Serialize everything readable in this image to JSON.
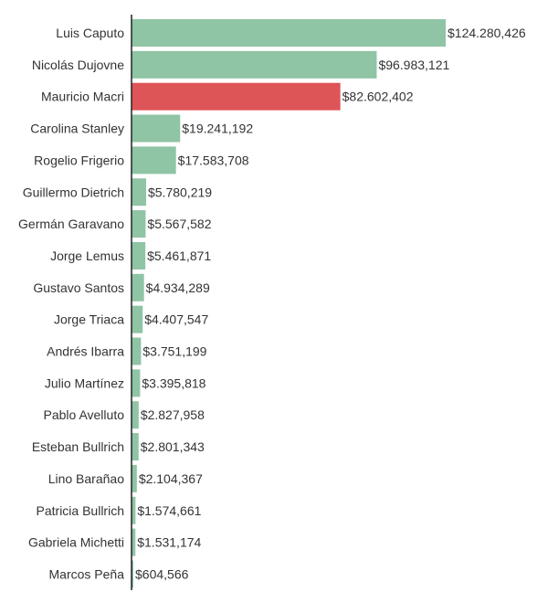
{
  "chart_data": {
    "type": "bar",
    "orientation": "horizontal",
    "title": "",
    "xlabel": "",
    "ylabel": "",
    "xlim": [
      0,
      124280426
    ],
    "grid": false,
    "currency_prefix": "$",
    "categories": [
      "Luis Caputo",
      "Nicolás Dujovne",
      "Mauricio Macri",
      "Carolina Stanley",
      "Rogelio Frigerio",
      "Guillermo Dietrich",
      "Germán Garavano",
      "Jorge Lemus",
      "Gustavo Santos",
      "Jorge Triaca",
      "Andrés Ibarra",
      "Julio Martínez",
      "Pablo Avelluto",
      "Esteban Bullrich",
      "Lino Barañao",
      "Patricia Bullrich",
      "Gabriela Michetti",
      "Marcos Peña"
    ],
    "values": [
      124280426,
      96983121,
      82602402,
      19241192,
      17583708,
      5780219,
      5567582,
      5461871,
      4934289,
      4407547,
      3751199,
      3395818,
      2827958,
      2801343,
      2104367,
      1574661,
      1531174,
      604566
    ],
    "value_labels": [
      "$124.280,426",
      "$96.983,121",
      "$82.602,402",
      "$19.241,192",
      "$17.583,708",
      "$5.780,219",
      "$5.567,582",
      "$5.461,871",
      "$4.934,289",
      "$4.407,547",
      "$3.751,199",
      "$3.395,818",
      "$2.827,958",
      "$2.801,343",
      "$2.104,367",
      "$1.574,661",
      "$1.531,174",
      "$604,566"
    ],
    "highlight_index": 2,
    "colors": {
      "bar": "#8fc4a5",
      "highlight": "#de5557"
    }
  }
}
